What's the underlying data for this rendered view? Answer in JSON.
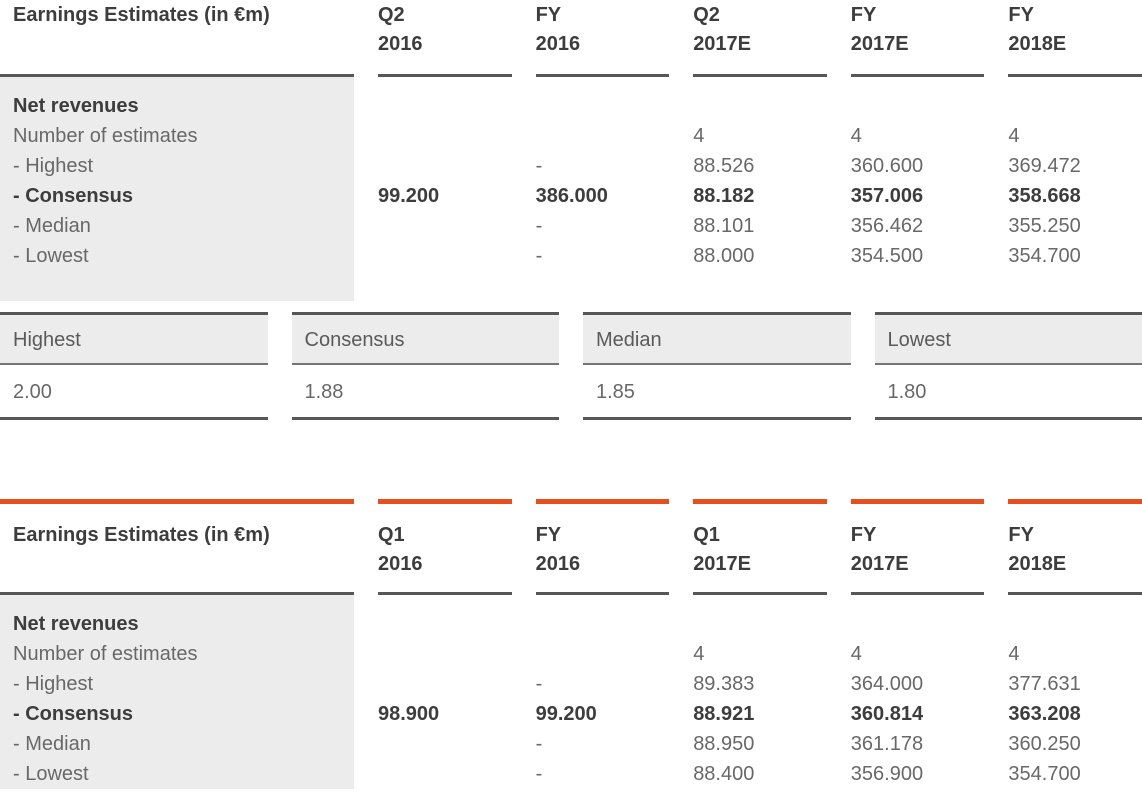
{
  "colors": {
    "accent_orange": "#e6501e",
    "dark_text": "#3d3d3d",
    "gray_text": "#686868",
    "panel_gray": "#ececec",
    "rule_dark": "#575757"
  },
  "table_top": {
    "title": "Earnings Estimates (in €m)",
    "columns": [
      [
        "Q2",
        "2016"
      ],
      [
        "FY",
        "2016"
      ],
      [
        "Q2",
        "2017E"
      ],
      [
        "FY",
        "2017E"
      ],
      [
        "FY",
        "2018E"
      ]
    ],
    "rows": [
      {
        "label": "Net revenues",
        "values": [
          "",
          "",
          "",
          "",
          ""
        ]
      },
      {
        "label": "Number of estimates",
        "values": [
          "",
          "",
          "4",
          "4",
          "4"
        ]
      },
      {
        "label": "- Highest",
        "values": [
          "",
          "-",
          "88.526",
          "360.600",
          "369.472"
        ]
      },
      {
        "label": "- Consensus",
        "values": [
          "99.200",
          "386.000",
          "88.182",
          "357.006",
          "358.668"
        ]
      },
      {
        "label": "- Median",
        "values": [
          "",
          "-",
          "88.101",
          "356.462",
          "355.250"
        ]
      },
      {
        "label": "- Lowest",
        "values": [
          "",
          "-",
          "88.000",
          "354.500",
          "354.700"
        ]
      }
    ]
  },
  "eps_boxes": [
    {
      "label": "Highest",
      "value": "2.00"
    },
    {
      "label": "Consensus",
      "value": "1.88"
    },
    {
      "label": "Median",
      "value": "1.85"
    },
    {
      "label": "Lowest",
      "value": "1.80"
    }
  ],
  "table_bottom": {
    "title": "Earnings Estimates (in €m)",
    "columns": [
      [
        "Q1",
        "2016"
      ],
      [
        "FY",
        "2016"
      ],
      [
        "Q1",
        "2017E"
      ],
      [
        "FY",
        "2017E"
      ],
      [
        "FY",
        "2018E"
      ]
    ],
    "rows": [
      {
        "label": "Net revenues",
        "values": [
          "",
          "",
          "",
          "",
          ""
        ]
      },
      {
        "label": "Number of estimates",
        "values": [
          "",
          "",
          "4",
          "4",
          "4"
        ]
      },
      {
        "label": "- Highest",
        "values": [
          "",
          "-",
          "89.383",
          "364.000",
          "377.631"
        ]
      },
      {
        "label": "- Consensus",
        "values": [
          "98.900",
          "99.200",
          "88.921",
          "360.814",
          "363.208"
        ]
      },
      {
        "label": "- Median",
        "values": [
          "",
          "-",
          "88.950",
          "361.178",
          "360.250"
        ]
      },
      {
        "label": "- Lowest",
        "values": [
          "",
          "-",
          "88.400",
          "356.900",
          "354.700"
        ]
      }
    ]
  }
}
